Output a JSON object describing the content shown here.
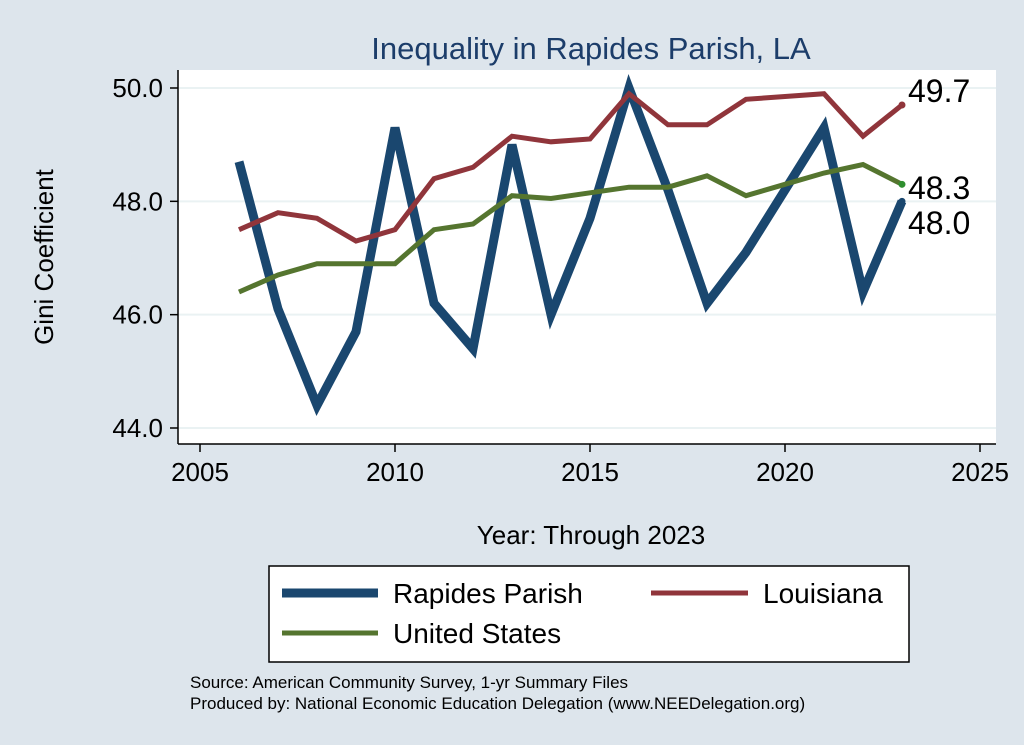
{
  "chart_data": {
    "type": "line",
    "title": "Inequality in Rapides Parish, LA",
    "xlabel": "Year: Through 2023",
    "ylabel": "Gini Coefficient",
    "xlim": [
      2005,
      2025
    ],
    "ylim": [
      44.0,
      50.0
    ],
    "xticks": [
      "2005",
      "2010",
      "2015",
      "2020",
      "2025"
    ],
    "yticks": [
      "44.0",
      "46.0",
      "48.0",
      "50.0"
    ],
    "grid": true,
    "x": [
      2006,
      2007,
      2008,
      2009,
      2010,
      2011,
      2012,
      2013,
      2014,
      2015,
      2016,
      2017,
      2018,
      2019,
      2020,
      2021,
      2022,
      2023
    ],
    "series": [
      {
        "name": "Rapides Parish",
        "color": "#1a476f",
        "values": [
          48.7,
          46.1,
          44.4,
          45.7,
          49.3,
          46.2,
          45.4,
          49.0,
          46.0,
          47.7,
          50.0,
          48.2,
          46.2,
          47.1,
          48.2,
          49.3,
          46.4,
          48.0
        ],
        "end_label": "48.0"
      },
      {
        "name": "Louisiana",
        "color": "#90353b",
        "values": [
          47.5,
          47.8,
          47.7,
          47.3,
          47.5,
          48.4,
          48.6,
          49.15,
          49.05,
          49.1,
          49.9,
          49.35,
          49.35,
          49.8,
          49.85,
          49.9,
          49.15,
          49.7
        ],
        "end_label": "49.7"
      },
      {
        "name": "United States",
        "color": "#55752f",
        "values": [
          46.4,
          46.7,
          46.9,
          46.9,
          46.9,
          47.5,
          47.6,
          48.1,
          48.05,
          48.15,
          48.25,
          48.25,
          48.45,
          48.1,
          48.3,
          48.5,
          48.65,
          48.3
        ],
        "end_label": "48.3"
      }
    ],
    "legend": {
      "position": "bottom",
      "items": [
        "Rapides Parish",
        "Louisiana",
        "United States"
      ]
    },
    "notes": [
      "Source: American Community Survey, 1-yr Summary Files",
      "Produced by: National Economic Education Delegation (www.NEEDelegation.org)"
    ]
  }
}
